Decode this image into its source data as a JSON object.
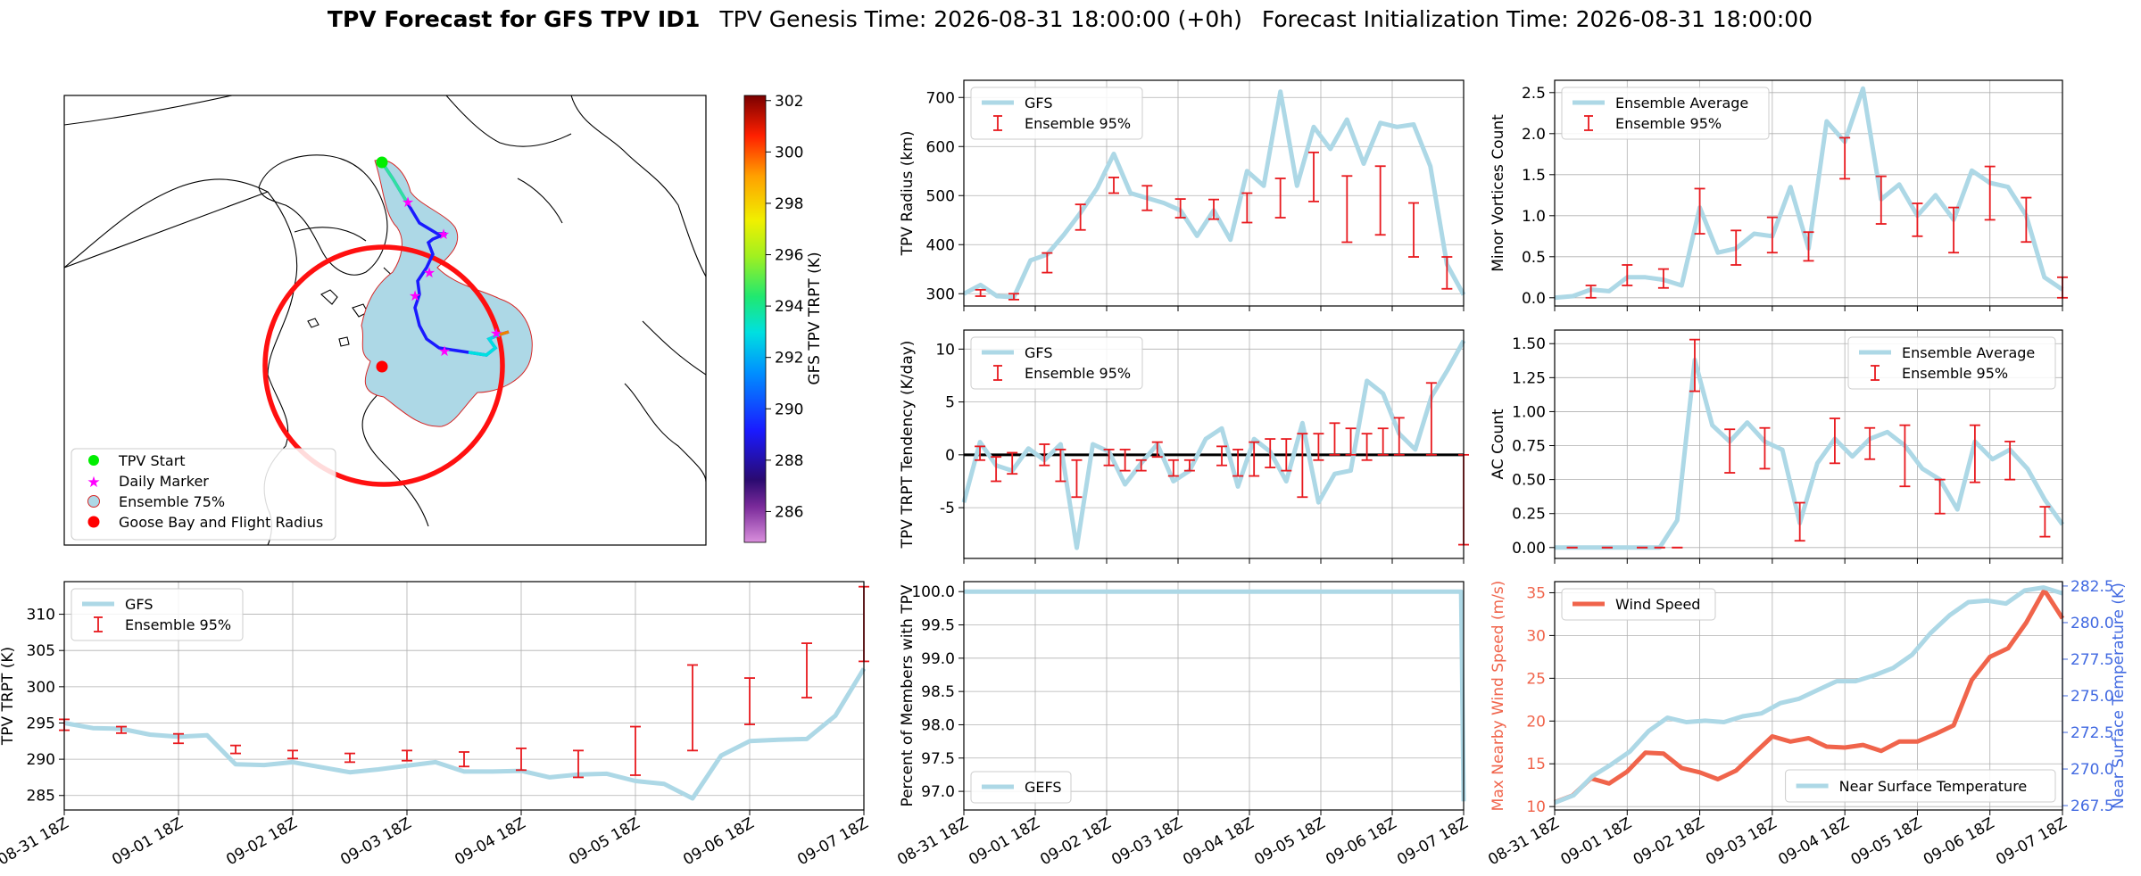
{
  "title": {
    "main": "TPV Forecast for GFS TPV ID1",
    "genesis": "TPV Genesis Time: 2026-08-31 18:00:00 (+0h)",
    "init": "Forecast Initialization Time: 2026-08-31 18:00:00"
  },
  "colors": {
    "line": "#add8e6",
    "err": "#e8191e",
    "wind": "#f0644b",
    "temp_axis": "#4169e1"
  },
  "map": {
    "legend": [
      "TPV Start",
      "Daily Marker",
      "Ensemble 75%",
      "Goose Bay and Flight Radius"
    ],
    "colorbar": {
      "label": "GFS TPV TRPT (K)",
      "ticks": [
        286,
        288,
        290,
        292,
        294,
        296,
        298,
        300,
        302
      ],
      "range": [
        284.8,
        302.2
      ]
    }
  },
  "chart_data": [
    {
      "id": "radius",
      "type": "line",
      "ylabel": "TPV Radius (km)",
      "yticks": [
        300,
        400,
        500,
        600,
        700
      ],
      "ylim": [
        275,
        735
      ],
      "legend": [
        "GFS",
        "Ensemble 95%"
      ],
      "legend_loc": "upper-left",
      "series": [
        {
          "name": "GFS",
          "values": [
            300,
            318,
            295,
            293,
            368,
            380,
            420,
            465,
            515,
            585,
            505,
            495,
            485,
            470,
            418,
            470,
            410,
            550,
            520,
            712,
            520,
            640,
            595,
            655,
            565,
            648,
            640,
            645,
            560,
            360,
            298
          ]
        }
      ],
      "errorbars": [
        [
          1,
          295,
          308
        ],
        [
          3,
          288,
          300
        ],
        [
          5,
          343,
          383
        ],
        [
          7,
          430,
          482
        ],
        [
          9,
          505,
          537
        ],
        [
          11,
          470,
          520
        ],
        [
          13,
          455,
          493
        ],
        [
          15,
          452,
          492
        ],
        [
          17,
          445,
          505
        ],
        [
          19,
          455,
          535
        ],
        [
          21,
          488,
          588
        ],
        [
          23,
          405,
          540
        ],
        [
          25,
          420,
          560
        ],
        [
          27,
          375,
          485
        ],
        [
          29,
          310,
          375
        ]
      ]
    },
    {
      "id": "minor",
      "type": "line",
      "ylabel": "Minor Vortices Count",
      "yticks": [
        0.0,
        0.5,
        1.0,
        1.5,
        2.0,
        2.5
      ],
      "ylim": [
        -0.1,
        2.65
      ],
      "legend": [
        "Ensemble Average",
        "Ensemble 95%"
      ],
      "legend_loc": "upper-left",
      "series": [
        {
          "name": "Ensemble Average",
          "values": [
            0,
            0.02,
            0.1,
            0.08,
            0.25,
            0.25,
            0.22,
            0.15,
            1.1,
            0.55,
            0.6,
            0.78,
            0.75,
            1.35,
            0.6,
            2.15,
            1.9,
            2.55,
            1.2,
            1.38,
            1.0,
            1.25,
            0.95,
            1.55,
            1.4,
            1.35,
            1.0,
            0.25,
            0.1
          ]
        }
      ],
      "errorbars": [
        [
          2,
          0,
          0.15
        ],
        [
          4,
          0.15,
          0.4
        ],
        [
          6,
          0.12,
          0.35
        ],
        [
          8,
          0.78,
          1.33
        ],
        [
          10,
          0.4,
          0.82
        ],
        [
          12,
          0.55,
          0.98
        ],
        [
          14,
          0.45,
          0.8
        ],
        [
          16,
          1.45,
          1.95
        ],
        [
          18,
          0.9,
          1.48
        ],
        [
          20,
          0.75,
          1.15
        ],
        [
          22,
          0.55,
          1.1
        ],
        [
          24,
          0.95,
          1.6
        ],
        [
          26,
          0.68,
          1.22
        ],
        [
          28,
          0,
          0.25
        ]
      ]
    },
    {
      "id": "tendency",
      "type": "line",
      "ylabel": "TPV TRPT Tendency (K/day)",
      "yticks": [
        -5,
        0,
        5,
        10
      ],
      "ylim": [
        -9.8,
        11.8
      ],
      "zero_line": true,
      "legend": [
        "GFS",
        "Ensemble 95%"
      ],
      "legend_loc": "upper-left",
      "series": [
        {
          "name": "GFS",
          "values": [
            -4.5,
            1.2,
            -1,
            -1.5,
            0.6,
            -0.5,
            1,
            -8.8,
            1,
            0.3,
            -2.8,
            -0.8,
            1,
            -2.5,
            -1.5,
            1.5,
            2.5,
            -3,
            1.5,
            0.3,
            -2.5,
            3,
            -4.5,
            -1.8,
            -1.5,
            7,
            5.8,
            2,
            0.5,
            5.5,
            8,
            10.8
          ]
        }
      ],
      "errorbars": [
        [
          1,
          -0.5,
          0.8
        ],
        [
          2,
          -2.5,
          -0.2
        ],
        [
          3,
          -1.8,
          0.2
        ],
        [
          5,
          -1,
          1
        ],
        [
          6,
          -2.5,
          0.5
        ],
        [
          7,
          -4,
          -0.5
        ],
        [
          9,
          -1,
          0.5
        ],
        [
          10,
          -1.5,
          0.5
        ],
        [
          11,
          -1.5,
          -0.5
        ],
        [
          12,
          -0.2,
          1.2
        ],
        [
          13,
          -2,
          -0.5
        ],
        [
          14,
          -1.5,
          -0.5
        ],
        [
          16,
          -1,
          0.8
        ],
        [
          17,
          -2,
          0.5
        ],
        [
          18,
          -2,
          1.2
        ],
        [
          19,
          -1.2,
          1.5
        ],
        [
          20,
          -1.5,
          1.5
        ],
        [
          21,
          -4,
          2
        ],
        [
          22,
          -0.5,
          2
        ],
        [
          23,
          0,
          3
        ],
        [
          24,
          0,
          2.5
        ],
        [
          25,
          -0.5,
          2
        ],
        [
          26,
          0,
          2.5
        ],
        [
          27,
          0,
          3.5
        ],
        [
          29,
          0,
          6.8
        ],
        [
          31,
          -8.5,
          0
        ]
      ]
    },
    {
      "id": "ac",
      "type": "line",
      "ylabel": "AC Count",
      "yticks": [
        0.0,
        0.25,
        0.5,
        0.75,
        1.0,
        1.25,
        1.5
      ],
      "ylim": [
        -0.08,
        1.6
      ],
      "legend": [
        "Ensemble Average",
        "Ensemble 95%"
      ],
      "legend_loc": "upper-right",
      "series": [
        {
          "name": "Ensemble Average",
          "values": [
            0,
            0,
            0,
            0,
            0,
            0,
            0,
            0.2,
            1.38,
            0.9,
            0.78,
            0.92,
            0.78,
            0.72,
            0.18,
            0.62,
            0.8,
            0.67,
            0.8,
            0.85,
            0.75,
            0.58,
            0.5,
            0.28,
            0.78,
            0.65,
            0.72,
            0.58,
            0.35,
            0.17
          ]
        }
      ],
      "errorbars": [
        [
          1,
          0,
          0
        ],
        [
          3,
          0,
          0
        ],
        [
          5,
          0,
          0
        ],
        [
          6,
          0,
          0
        ],
        [
          7,
          0,
          0
        ],
        [
          8,
          1.15,
          1.53
        ],
        [
          10,
          0.55,
          0.87
        ],
        [
          12,
          0.58,
          0.88
        ],
        [
          14,
          0.05,
          0.33
        ],
        [
          16,
          0.62,
          0.95
        ],
        [
          18,
          0.65,
          0.88
        ],
        [
          20,
          0.45,
          0.9
        ],
        [
          22,
          0.25,
          0.5
        ],
        [
          24,
          0.48,
          0.9
        ],
        [
          26,
          0.5,
          0.78
        ],
        [
          28,
          0.08,
          0.3
        ]
      ]
    },
    {
      "id": "trpt",
      "type": "line",
      "ylabel": "TPV TRPT (K)",
      "yticks": [
        285,
        290,
        295,
        300,
        305,
        310
      ],
      "ylim": [
        283,
        314.5
      ],
      "legend": [
        "GFS",
        "Ensemble 95%"
      ],
      "legend_loc": "upper-left",
      "series": [
        {
          "name": "GFS",
          "values": [
            295,
            294.3,
            294.2,
            293.4,
            293.1,
            293.3,
            289.3,
            289.2,
            289.6,
            288.9,
            288.2,
            288.6,
            289.1,
            289.6,
            288.3,
            288.3,
            288.4,
            287.5,
            287.9,
            288.0,
            287.0,
            286.6,
            284.6,
            290.5,
            292.5,
            292.7,
            292.8,
            296.0,
            302.5
          ]
        }
      ],
      "errorbars": [
        [
          0,
          294,
          295.5
        ],
        [
          2,
          293.6,
          294.5
        ],
        [
          4,
          292.2,
          293.5
        ],
        [
          6,
          290.8,
          291.9
        ],
        [
          8,
          290.1,
          291.2
        ],
        [
          10,
          289.6,
          290.8
        ],
        [
          12,
          289.8,
          291.2
        ],
        [
          14,
          289,
          291
        ],
        [
          16,
          288.5,
          291.5
        ],
        [
          18,
          287.5,
          291.2
        ],
        [
          20,
          287.8,
          294.5
        ],
        [
          22,
          291.2,
          303
        ],
        [
          24,
          294.8,
          301.2
        ],
        [
          26,
          298.5,
          306
        ],
        [
          28,
          303.5,
          313.8
        ]
      ]
    },
    {
      "id": "members",
      "type": "line",
      "ylabel": "Percent of Members with TPV",
      "yticks": [
        97.0,
        97.5,
        98.0,
        98.5,
        99.0,
        99.5,
        100.0
      ],
      "ylim": [
        96.72,
        100.15
      ],
      "legend": [
        "GEFS"
      ],
      "legend_loc": "lower-left",
      "series": [
        {
          "name": "GEFS",
          "values": [
            100,
            100,
            100,
            100,
            100,
            100,
            100,
            100,
            100,
            100,
            100,
            100,
            100,
            100,
            100,
            100,
            100,
            100,
            100,
            100,
            100,
            100,
            100,
            100,
            100,
            100,
            100,
            100,
            100,
            100,
            100,
            100,
            100,
            100,
            100,
            100,
            100,
            100,
            100,
            100,
            100,
            100,
            100,
            100,
            100,
            100,
            100,
            100,
            100,
            100,
            100,
            100,
            100,
            100,
            100,
            100,
            100,
            100,
            100,
            100,
            100,
            100,
            100,
            100,
            100,
            100,
            100,
            100,
            100,
            100,
            100,
            100,
            100,
            100,
            100,
            100,
            100,
            100,
            100,
            100,
            100,
            100,
            100,
            100,
            100,
            100,
            100,
            100,
            100,
            100,
            100,
            100,
            100,
            100,
            100,
            100,
            100,
            100,
            100,
            100,
            100,
            100,
            100,
            100,
            100,
            100,
            100,
            100,
            100,
            100,
            100,
            100,
            100,
            100,
            100,
            100,
            100,
            100,
            100,
            100,
            100,
            100,
            100,
            100,
            100,
            100,
            100,
            100,
            100,
            100,
            100,
            100,
            100,
            100,
            100,
            100,
            100,
            100,
            100,
            100,
            100,
            100,
            100,
            100,
            100,
            100,
            100,
            100,
            100,
            100,
            100,
            100,
            100,
            100,
            100,
            100,
            100,
            100,
            100,
            100,
            100,
            100,
            100,
            100,
            100,
            100,
            100,
            100,
            100,
            100,
            100,
            100,
            100,
            100,
            100,
            100,
            100,
            100,
            100,
            100,
            100,
            100,
            100,
            100,
            100,
            100,
            100,
            100,
            100,
            100,
            100,
            100,
            100,
            100,
            100,
            100,
            100,
            100,
            96.85
          ]
        }
      ]
    },
    {
      "id": "wind",
      "type": "line",
      "ylabel": "Max Nearby Wind Speed (m/s)",
      "ylabel2": "Near Surface Temperature (K)",
      "yticks": [
        10,
        15,
        20,
        25,
        30,
        35
      ],
      "ylim": [
        9.6,
        36.3
      ],
      "yticks2": [
        267.5,
        270.0,
        272.5,
        275.0,
        277.5,
        280.0,
        282.5
      ],
      "ylim2": [
        267.2,
        282.8
      ],
      "legend": [
        "Wind Speed"
      ],
      "legend2": [
        "Near Surface Temperature"
      ],
      "series": [
        {
          "name": "Wind Speed",
          "values": [
            10.5,
            11.3,
            13.3,
            12.7,
            14.1,
            16.3,
            16.2,
            14.5,
            14.0,
            13.2,
            14.2,
            16.2,
            18.2,
            17.6,
            18.0,
            17.0,
            16.9,
            17.2,
            16.5,
            17.6,
            17.6,
            18.5,
            19.5,
            24.8,
            27.5,
            28.5,
            31.5,
            35.3,
            32.0
          ]
        },
        {
          "name": "Near Surface Temperature",
          "axis": 2,
          "values": [
            267.7,
            268.2,
            269.5,
            270.3,
            271.2,
            272.6,
            273.5,
            273.2,
            273.3,
            273.2,
            273.6,
            273.8,
            274.5,
            274.8,
            275.4,
            276.0,
            276.0,
            276.4,
            276.9,
            277.8,
            279.3,
            280.5,
            281.4,
            281.5,
            281.3,
            282.2,
            282.4,
            282.0
          ]
        }
      ]
    }
  ],
  "xticks": [
    "08-31 18Z",
    "09-01 18Z",
    "09-02 18Z",
    "09-03 18Z",
    "09-04 18Z",
    "09-05 18Z",
    "09-06 18Z",
    "09-07 18Z"
  ]
}
